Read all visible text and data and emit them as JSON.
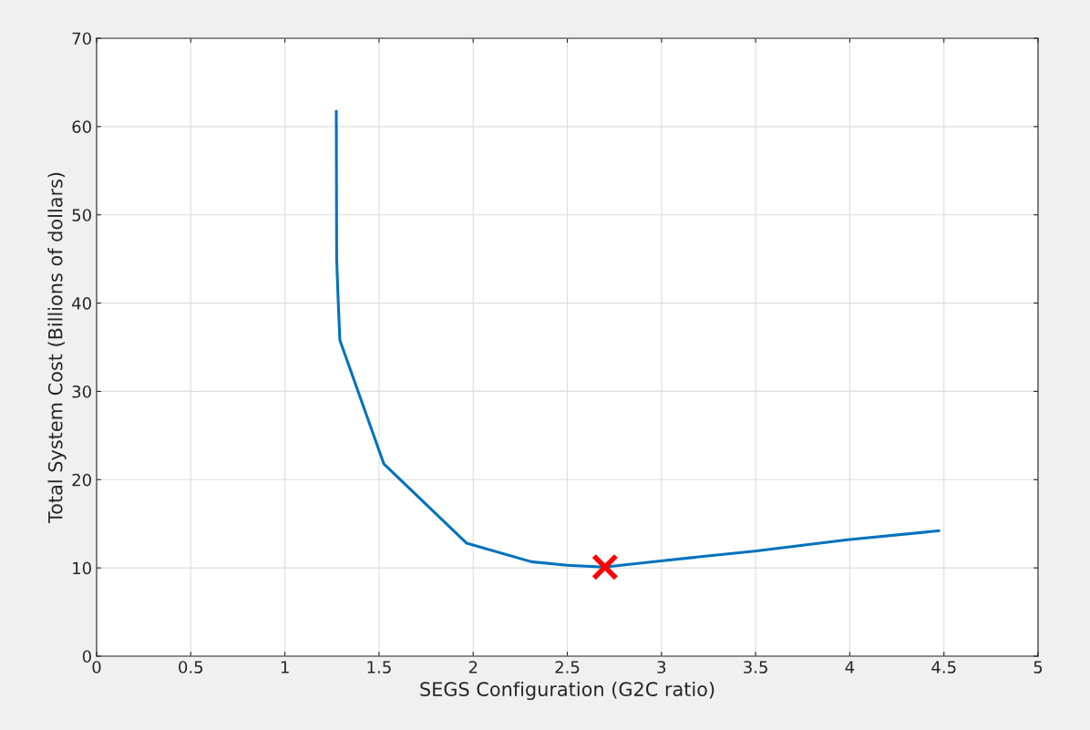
{
  "chart_data": {
    "type": "line",
    "xlabel": "SEGS Configuration (G2C ratio)",
    "ylabel": "Total System Cost (Billions of dollars)",
    "series": [
      {
        "color": "#0072bd",
        "marker": "none",
        "x": [
          1.273,
          1.275,
          1.283,
          1.292,
          1.525,
          1.965,
          2.309,
          2.5,
          2.696,
          2.996,
          3.495,
          3.988,
          4.472
        ],
        "values": [
          61.7,
          45,
          40.3,
          35.8,
          21.8,
          12.8,
          10.7,
          10.3,
          10.1,
          10.8,
          11.9,
          13.2,
          14.2
        ]
      },
      {
        "type": "scatter",
        "color": "#ff0000",
        "marker": "cross",
        "x": [
          2.7
        ],
        "values": [
          10.1
        ]
      }
    ],
    "xlim": [
      0,
      5
    ],
    "xticks": [
      0,
      0.5,
      1,
      1.5,
      2,
      2.5,
      3,
      3.5,
      4,
      4.5,
      5
    ],
    "ylim": [
      0,
      70
    ],
    "yticks": [
      0,
      10,
      20,
      30,
      40,
      50,
      60,
      70
    ],
    "grid": true
  }
}
